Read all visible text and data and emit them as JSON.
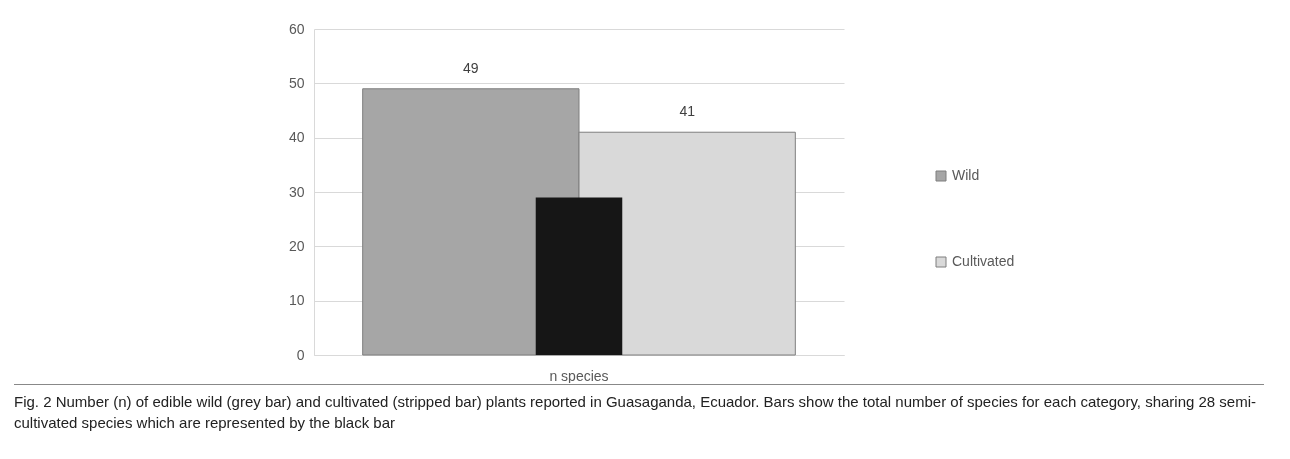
{
  "chart_data": {
    "type": "bar",
    "categories": [
      "n species"
    ],
    "series": [
      {
        "name": "Wild",
        "color": "#a6a6a6",
        "values": [
          49
        ],
        "value_labels": [
          "49"
        ]
      },
      {
        "name": "Cultivated",
        "color": "#d9d9d9",
        "values": [
          41
        ],
        "value_labels": [
          "41"
        ]
      },
      {
        "color": "#161616",
        "values": [
          29
        ]
      }
    ],
    "ylim": [
      0,
      60
    ],
    "yticks": [
      0,
      10,
      20,
      30,
      40,
      50,
      60
    ],
    "grid": "y",
    "legend": "right",
    "annotations": [
      "Fig. 2 Number (n) of edible wild (grey bar) and cultivated (stripped bar) plants reported in Guasaganda, Ecuador. Bars show the total number of species for each category, sharing 28 semi-cultivated species which are represented by the black bar"
    ]
  }
}
